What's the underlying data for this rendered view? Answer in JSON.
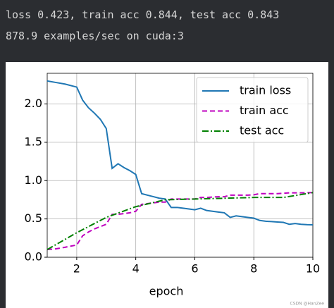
{
  "output_lines": [
    "loss 0.423, train acc 0.844, test acc 0.843",
    "878.9 examples/sec on cuda:3"
  ],
  "watermark": "CSDN @HanZee",
  "chart_data": {
    "type": "line",
    "xlabel": "epoch",
    "x": [
      1,
      1.3,
      1.6,
      2,
      2.2,
      2.4,
      2.6,
      2.8,
      3,
      3.2,
      3.4,
      3.6,
      3.8,
      4,
      4.2,
      4.4,
      4.6,
      4.8,
      5,
      5.2,
      5.4,
      5.6,
      5.8,
      6,
      6.2,
      6.4,
      6.6,
      6.8,
      7,
      7.2,
      7.4,
      7.6,
      7.8,
      8,
      8.2,
      8.4,
      8.6,
      8.8,
      9,
      9.2,
      9.4,
      9.6,
      9.8,
      10
    ],
    "series": [
      {
        "name": "train loss",
        "color": "#1f77b4",
        "linestyle": "-",
        "values": [
          2.3,
          2.28,
          2.26,
          2.22,
          2.05,
          1.95,
          1.88,
          1.8,
          1.68,
          1.16,
          1.22,
          1.17,
          1.13,
          1.08,
          0.83,
          0.81,
          0.79,
          0.77,
          0.76,
          0.65,
          0.65,
          0.64,
          0.63,
          0.62,
          0.64,
          0.61,
          0.6,
          0.59,
          0.58,
          0.52,
          0.54,
          0.53,
          0.52,
          0.51,
          0.48,
          0.47,
          0.465,
          0.46,
          0.455,
          0.43,
          0.44,
          0.43,
          0.425,
          0.423
        ]
      },
      {
        "name": "train acc",
        "color": "#bf00bf",
        "linestyle": "--",
        "values": [
          0.1,
          0.11,
          0.13,
          0.16,
          0.28,
          0.33,
          0.37,
          0.4,
          0.43,
          0.56,
          0.56,
          0.57,
          0.58,
          0.6,
          0.69,
          0.7,
          0.71,
          0.72,
          0.72,
          0.76,
          0.76,
          0.76,
          0.76,
          0.76,
          0.78,
          0.78,
          0.785,
          0.79,
          0.79,
          0.81,
          0.81,
          0.81,
          0.81,
          0.815,
          0.83,
          0.83,
          0.83,
          0.83,
          0.835,
          0.84,
          0.84,
          0.84,
          0.842,
          0.844
        ]
      },
      {
        "name": "test acc",
        "color": "#008000",
        "linestyle": "-.",
        "x": [
          1,
          2,
          3,
          4,
          5,
          6,
          7,
          8,
          9,
          10
        ],
        "values": [
          0.1,
          0.32,
          0.52,
          0.66,
          0.75,
          0.76,
          0.77,
          0.78,
          0.78,
          0.843
        ]
      }
    ],
    "xlim": [
      1,
      10
    ],
    "xticks": [
      2,
      4,
      6,
      8,
      10
    ],
    "ylim": [
      0,
      2.4
    ],
    "yticks": [
      {
        "value": 0,
        "label": "0.0"
      },
      0.5,
      {
        "value": 1,
        "label": "1.0"
      },
      1.5,
      {
        "value": 2,
        "label": "2.0"
      }
    ],
    "grid": true,
    "legend": "upper right"
  }
}
